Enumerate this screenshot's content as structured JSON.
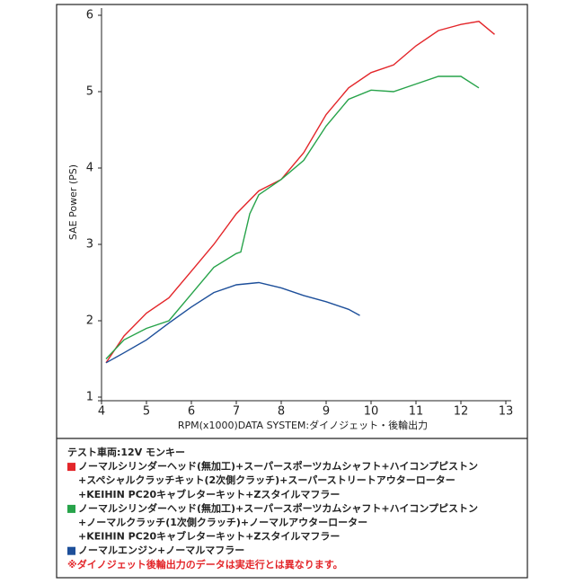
{
  "chart_data": {
    "type": "line",
    "x_label": "RPM(x1000)DATA SYSTEM:ダイノジェット・後輪出力",
    "y_label": "SAE Power (PS)",
    "xlim": [
      4,
      13
    ],
    "ylim": [
      1,
      6
    ],
    "xticks": [
      4,
      5,
      6,
      7,
      8,
      9,
      10,
      11,
      12,
      13
    ],
    "yticks": [
      1,
      2,
      3,
      4,
      5,
      6
    ],
    "legend_title": "テスト車両:12V モンキー",
    "series": [
      {
        "name": "ノーマルシリンダーヘッド(無加工)+スーパースポーツカムシャフト+ハイコンプピストン",
        "name_lines": [
          "+スペシャルクラッチキット(2次側クラッチ)+スーパーストリートアウターローター",
          "+KEIHIN PC20キャブレターキット+Zスタイルマフラー"
        ],
        "color": "#e3262a",
        "x": [
          4.1,
          4.5,
          5,
          5.5,
          6,
          6.5,
          7,
          7.5,
          8,
          8.5,
          9,
          9.5,
          10,
          10.5,
          11,
          11.5,
          12,
          12.4,
          12.75
        ],
        "values": [
          1.45,
          1.8,
          2.1,
          2.3,
          2.65,
          3.0,
          3.4,
          3.7,
          3.85,
          4.2,
          4.7,
          5.05,
          5.25,
          5.35,
          5.6,
          5.8,
          5.88,
          5.92,
          5.75
        ]
      },
      {
        "name": "ノーマルシリンダーヘッド(無加工)+スーパースポーツカムシャフト+ハイコンプピストン",
        "name_lines": [
          "+ノーマルクラッチ(1次側クラッチ)+ノーマルアウターローター",
          "+KEIHIN PC20キャブレターキット+Zスタイルマフラー"
        ],
        "color": "#27a34a",
        "x": [
          4.1,
          4.5,
          5,
          5.5,
          6,
          6.5,
          7,
          7.1,
          7.3,
          7.5,
          8,
          8.5,
          9,
          9.5,
          10,
          10.5,
          11,
          11.5,
          12,
          12.4
        ],
        "values": [
          1.5,
          1.75,
          1.9,
          2.0,
          2.35,
          2.7,
          2.88,
          2.9,
          3.4,
          3.65,
          3.85,
          4.1,
          4.55,
          4.9,
          5.02,
          5.0,
          5.1,
          5.2,
          5.2,
          5.05
        ]
      },
      {
        "name": "ノーマルエンジン+ノーマルマフラー",
        "name_lines": [],
        "color": "#1d4f9a",
        "x": [
          4.1,
          4.5,
          5,
          5.5,
          6,
          6.5,
          7,
          7.5,
          8,
          8.5,
          9,
          9.5,
          9.75
        ],
        "values": [
          1.45,
          1.58,
          1.75,
          1.97,
          2.18,
          2.37,
          2.47,
          2.5,
          2.43,
          2.33,
          2.25,
          2.15,
          2.07
        ]
      }
    ],
    "footnote": "※ダイノジェット後輪出力のデータは実走行とは異なります。"
  }
}
